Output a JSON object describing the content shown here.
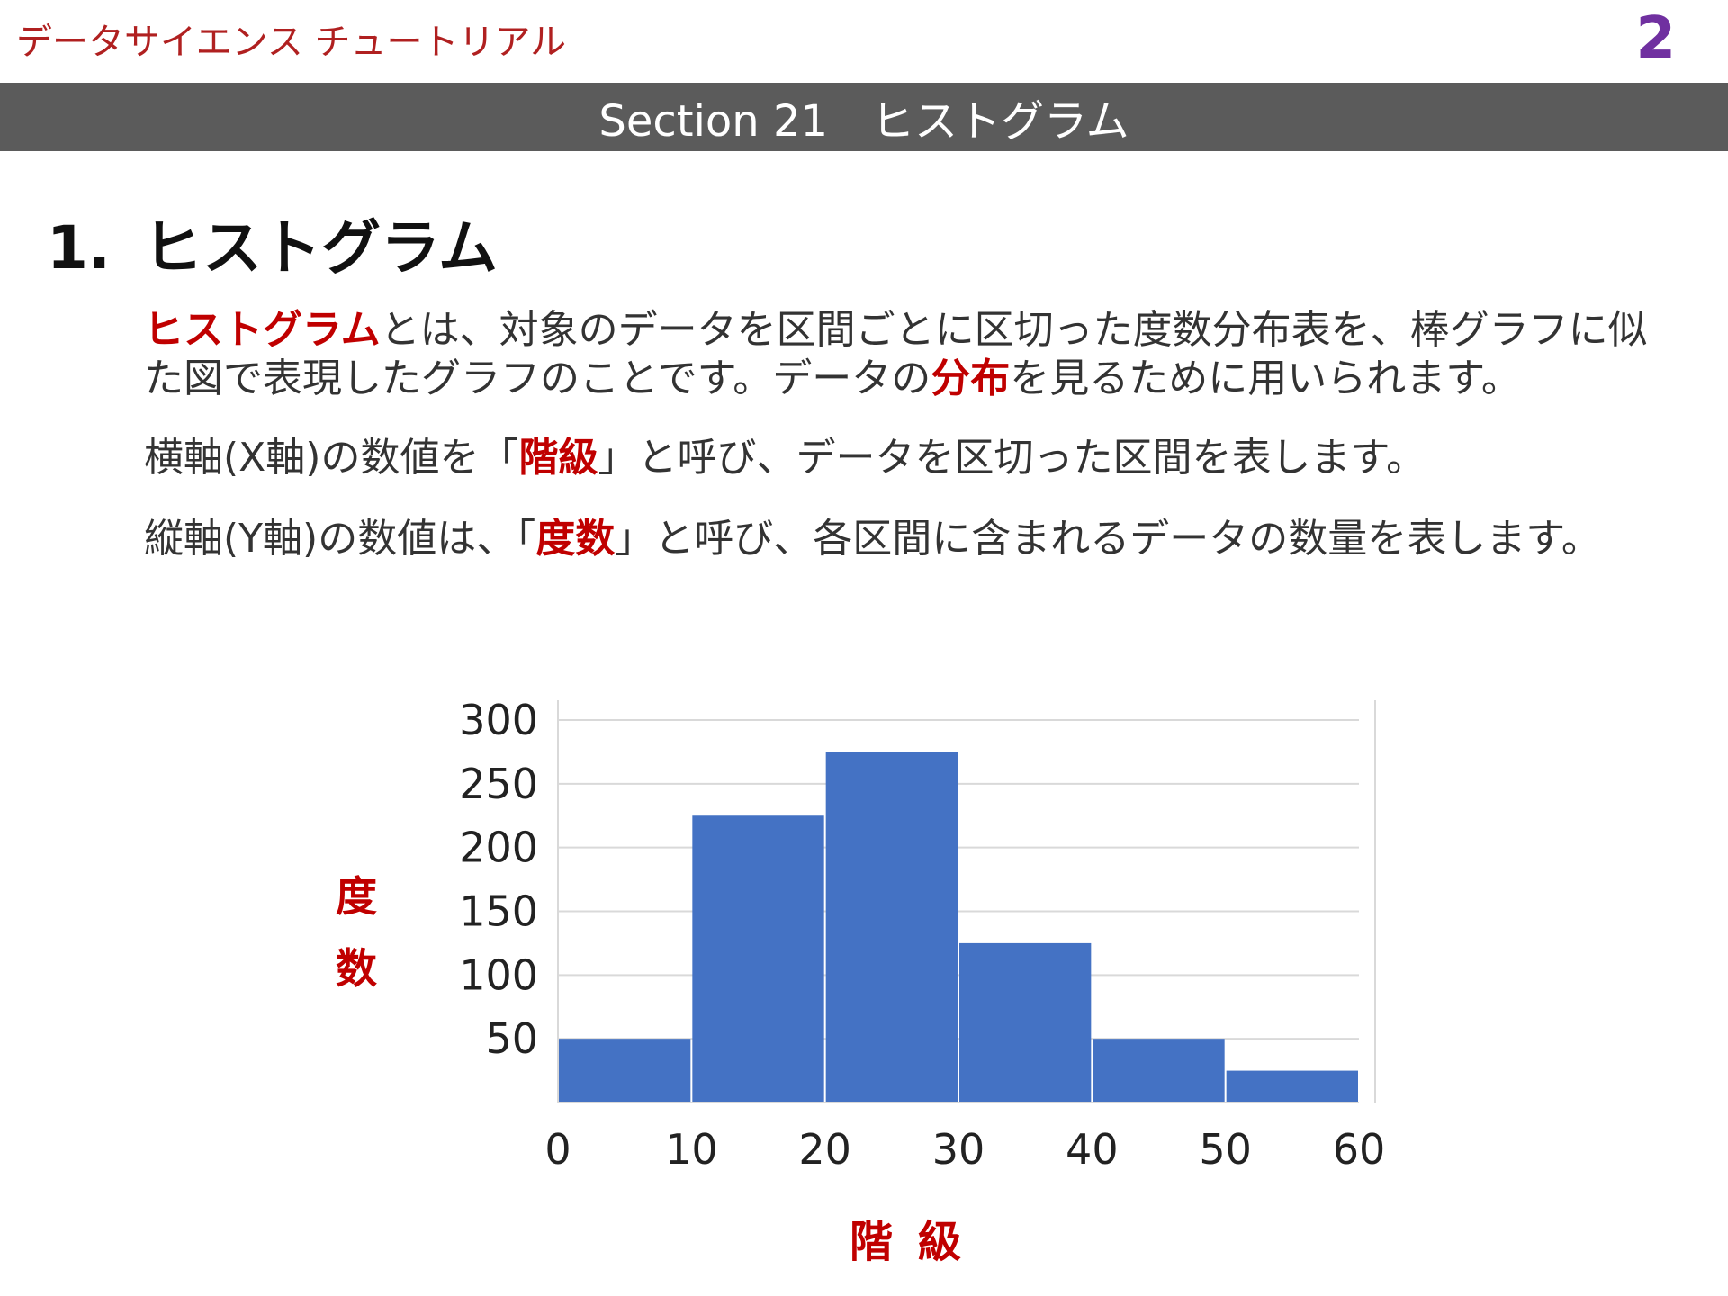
{
  "header": {
    "brand": "データサイエンス チュートリアル",
    "page_number": "2",
    "section_title": "Section 21　ヒストグラム"
  },
  "heading": {
    "number": "1.",
    "title": "ヒストグラム"
  },
  "paragraphs": {
    "p1": {
      "term": "ヒストグラム",
      "text1": "とは、対象のデータを区間ごとに区切った度数分布表を、棒グラフに似た図で表現したグラフのことです。データの",
      "term2": "分布",
      "text2": "を見るために用いられます。"
    },
    "p2": {
      "text1": "横軸(X軸)の数値を「",
      "term": "階級",
      "text2": "」と呼び、データを区切った区間を表します。"
    },
    "p3": {
      "text1": "縦軸(Y軸)の数値は、「",
      "term": "度数",
      "text2": "」と呼び、各区間に含まれるデータの数量を表します。"
    }
  },
  "axis_labels": {
    "y_char1": "度",
    "y_char2": "数",
    "x_label": "階級"
  },
  "colors": {
    "bar": "#4472c4",
    "accent_red": "#c00000",
    "page_num": "#7030a0",
    "section_bar": "#5b5b5b",
    "grid": "#d9d9d9"
  },
  "chart_data": {
    "type": "bar",
    "bins": [
      [
        0,
        10
      ],
      [
        10,
        20
      ],
      [
        20,
        30
      ],
      [
        30,
        40
      ],
      [
        40,
        50
      ],
      [
        50,
        60
      ]
    ],
    "values": [
      50,
      225,
      275,
      125,
      50,
      25
    ],
    "xticks": [
      "0",
      "10",
      "20",
      "30",
      "40",
      "50",
      "60"
    ],
    "yticks": [
      "50",
      "100",
      "150",
      "200",
      "250",
      "300"
    ],
    "ylim": [
      0,
      300
    ],
    "xlim": [
      0,
      60
    ],
    "xlabel": "階級",
    "ylabel": "度数",
    "grid": true
  }
}
